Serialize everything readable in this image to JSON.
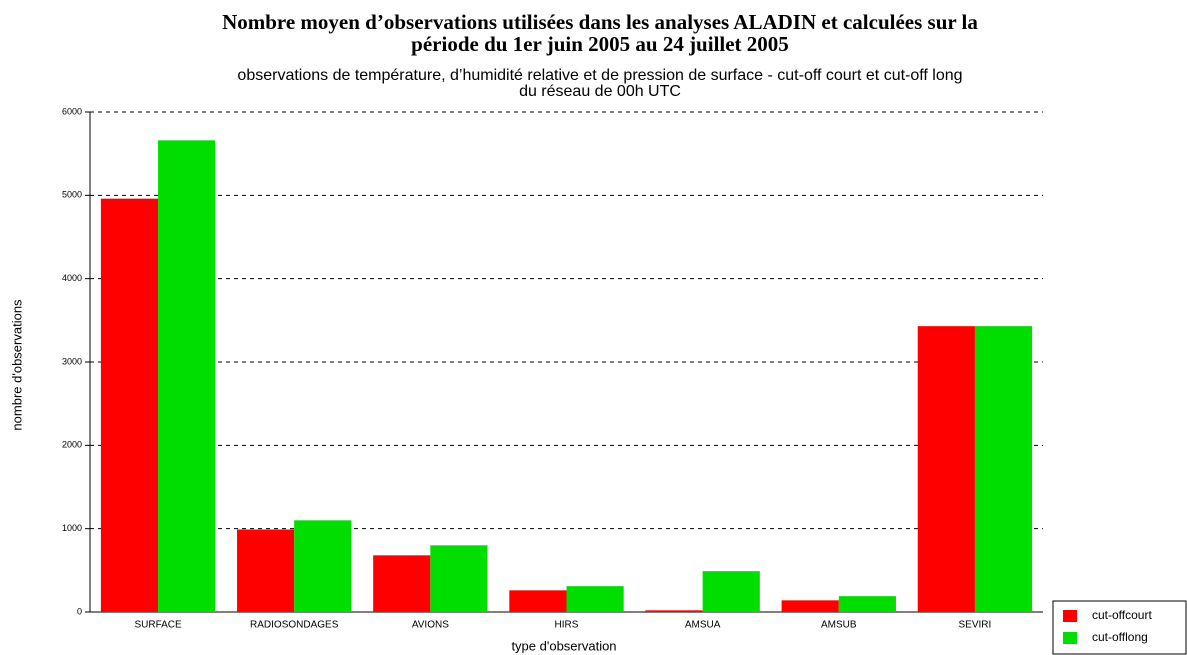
{
  "chart_data": {
    "type": "bar",
    "title": [
      "Nombre moyen d’observations utilisées dans les analyses ALADIN et calculées sur la",
      "période du 1er juin 2005 au 24 juillet 2005"
    ],
    "subtitle": [
      "observations de température, d’humidité relative et de pression de surface - cut-off court et cut-off long",
      "du réseau de 00h UTC"
    ],
    "x_label": "type d'observation",
    "y_label": "nombre d'observations",
    "categories": [
      "SURFACE",
      "RADIOSONDAGES",
      "AVIONS",
      "HIRS",
      "AMSUA",
      "AMSUB",
      "SEVIRI"
    ],
    "series": [
      {
        "name": "cut-offcourt",
        "color": "#ff0000",
        "values": [
          4960,
          990,
          680,
          260,
          20,
          140,
          3430
        ]
      },
      {
        "name": "cut-offlong",
        "color": "#00dd00",
        "values": [
          5660,
          1100,
          800,
          310,
          490,
          190,
          3430
        ]
      }
    ],
    "ylim": [
      0,
      6000
    ],
    "yticks": [
      0,
      1000,
      2000,
      3000,
      4000,
      5000,
      6000
    ],
    "grid": true,
    "legend": "lower right"
  }
}
